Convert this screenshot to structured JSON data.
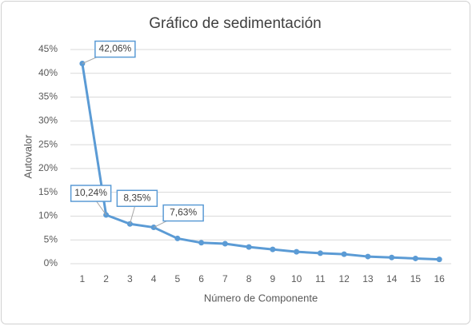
{
  "chart_data": {
    "type": "line",
    "title": "Gráfico de sedimentación",
    "x_label": "Número de Componente",
    "y_label": "Autovalor",
    "categories": [
      "1",
      "2",
      "3",
      "4",
      "5",
      "6",
      "7",
      "8",
      "9",
      "10",
      "11",
      "12",
      "13",
      "14",
      "15",
      "16"
    ],
    "values": [
      42.06,
      10.24,
      8.35,
      7.63,
      5.3,
      4.4,
      4.2,
      3.5,
      3.0,
      2.5,
      2.2,
      2.0,
      1.5,
      1.3,
      1.1,
      0.9
    ],
    "value_labels": [
      "42,06%",
      "10,24%",
      "8,35%",
      "7,63%",
      null,
      null,
      null,
      null,
      null,
      null,
      null,
      null,
      null,
      null,
      null,
      null
    ],
    "color": "#5b9bd5",
    "ylim": [
      0,
      45
    ],
    "yticks": [
      {
        "value": 0,
        "label": "0%"
      },
      {
        "value": 5,
        "label": "5%"
      },
      {
        "value": 10,
        "label": "10%"
      },
      {
        "value": 15,
        "label": "15%"
      },
      {
        "value": 20,
        "label": "20%"
      },
      {
        "value": 25,
        "label": "25%"
      },
      {
        "value": 30,
        "label": "30%"
      },
      {
        "value": 35,
        "label": "35%"
      },
      {
        "value": 40,
        "label": "40%"
      },
      {
        "value": 45,
        "label": "45%"
      }
    ],
    "grid": true
  }
}
